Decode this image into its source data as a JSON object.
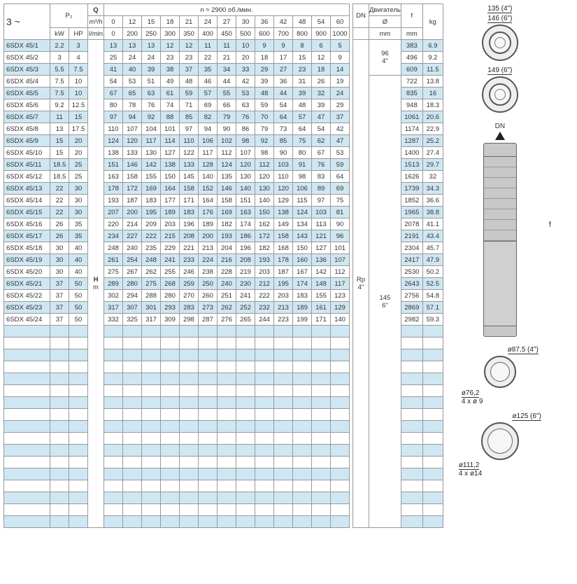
{
  "header": {
    "three_tilde": "3 ~",
    "P2": "P₂",
    "Q": "Q",
    "Q_unit1": "m³/h",
    "Q_unit2": "l/min",
    "kW": "kW",
    "HP": "HP",
    "rpm": "n ≈ 2900 об./мин.",
    "DN": "DN",
    "motor": "Двигатель",
    "diameter": "Ø",
    "mm": "mm",
    "f": "f",
    "kg": "kg",
    "H": "H",
    "m": "m",
    "Rp": "Rp",
    "Rp_size": "4\""
  },
  "flow_m3h": [
    "0",
    "12",
    "15",
    "18",
    "21",
    "24",
    "27",
    "30",
    "36",
    "42",
    "48",
    "54",
    "60"
  ],
  "flow_lmin": [
    "0",
    "200",
    "250",
    "300",
    "350",
    "400",
    "450",
    "500",
    "600",
    "700",
    "800",
    "900",
    "1000"
  ],
  "dn_groups": [
    {
      "dia": "96",
      "size": "4\"",
      "rows": 3
    },
    {
      "dia": "145",
      "size": "6\"",
      "rows": 21
    }
  ],
  "rows": [
    {
      "model": "6SDX 45/1",
      "kw": "2.2",
      "hp": "3",
      "h": [
        "13",
        "13",
        "13",
        "12",
        "12",
        "11",
        "11",
        "10",
        "9",
        "9",
        "8",
        "6",
        "5"
      ],
      "f": "383",
      "kg": "6.9"
    },
    {
      "model": "6SDX 45/2",
      "kw": "3",
      "hp": "4",
      "h": [
        "25",
        "24",
        "24",
        "23",
        "23",
        "22",
        "21",
        "20",
        "18",
        "17",
        "15",
        "12",
        "9"
      ],
      "f": "496",
      "kg": "9.2"
    },
    {
      "model": "6SDX 45/3",
      "kw": "5.5",
      "hp": "7.5",
      "h": [
        "41",
        "40",
        "39",
        "38",
        "37",
        "35",
        "34",
        "33",
        "29",
        "27",
        "23",
        "18",
        "14"
      ],
      "f": "609",
      "kg": "11.5"
    },
    {
      "model": "6SDX 45/4",
      "kw": "7.5",
      "hp": "10",
      "h": [
        "54",
        "53",
        "51",
        "49",
        "48",
        "46",
        "44",
        "42",
        "39",
        "36",
        "31",
        "26",
        "19"
      ],
      "f": "722",
      "kg": "13.8"
    },
    {
      "model": "6SDX 45/5",
      "kw": "7.5",
      "hp": "10",
      "h": [
        "67",
        "65",
        "63",
        "61",
        "59",
        "57",
        "55",
        "53",
        "48",
        "44",
        "39",
        "32",
        "24"
      ],
      "f": "835",
      "kg": "16"
    },
    {
      "model": "6SDX 45/6",
      "kw": "9.2",
      "hp": "12.5",
      "h": [
        "80",
        "78",
        "76",
        "74",
        "71",
        "69",
        "66",
        "63",
        "59",
        "54",
        "48",
        "39",
        "29"
      ],
      "f": "948",
      "kg": "18.3"
    },
    {
      "model": "6SDX 45/7",
      "kw": "11",
      "hp": "15",
      "h": [
        "97",
        "94",
        "92",
        "88",
        "85",
        "82",
        "79",
        "76",
        "70",
        "64",
        "57",
        "47",
        "37"
      ],
      "f": "1061",
      "kg": "20.6"
    },
    {
      "model": "6SDX 45/8",
      "kw": "13",
      "hp": "17.5",
      "h": [
        "110",
        "107",
        "104",
        "101",
        "97",
        "94",
        "90",
        "86",
        "79",
        "73",
        "64",
        "54",
        "42"
      ],
      "f": "1174",
      "kg": "22.9"
    },
    {
      "model": "6SDX 45/9",
      "kw": "15",
      "hp": "20",
      "h": [
        "124",
        "120",
        "117",
        "114",
        "110",
        "106",
        "102",
        "98",
        "92",
        "85",
        "75",
        "62",
        "47"
      ],
      "f": "1287",
      "kg": "25.2"
    },
    {
      "model": "6SDX 45/10",
      "kw": "15",
      "hp": "20",
      "h": [
        "138",
        "133",
        "130",
        "127",
        "122",
        "117",
        "112",
        "107",
        "98",
        "90",
        "80",
        "67",
        "53"
      ],
      "f": "1400",
      "kg": "27.4"
    },
    {
      "model": "6SDX 45/11",
      "kw": "18.5",
      "hp": "25",
      "h": [
        "151",
        "146",
        "142",
        "138",
        "133",
        "128",
        "124",
        "120",
        "112",
        "103",
        "91",
        "76",
        "59"
      ],
      "f": "1513",
      "kg": "29.7"
    },
    {
      "model": "6SDX 45/12",
      "kw": "18.5",
      "hp": "25",
      "h": [
        "163",
        "158",
        "155",
        "150",
        "145",
        "140",
        "135",
        "130",
        "120",
        "110",
        "98",
        "83",
        "64"
      ],
      "f": "1626",
      "kg": "32"
    },
    {
      "model": "6SDX 45/13",
      "kw": "22",
      "hp": "30",
      "h": [
        "178",
        "172",
        "169",
        "164",
        "158",
        "152",
        "146",
        "140",
        "130",
        "120",
        "106",
        "89",
        "69"
      ],
      "f": "1739",
      "kg": "34.3"
    },
    {
      "model": "6SDX 45/14",
      "kw": "22",
      "hp": "30",
      "h": [
        "193",
        "187",
        "183",
        "177",
        "171",
        "164",
        "158",
        "151",
        "140",
        "129",
        "115",
        "97",
        "75"
      ],
      "f": "1852",
      "kg": "36.6"
    },
    {
      "model": "6SDX 45/15",
      "kw": "22",
      "hp": "30",
      "h": [
        "207",
        "200",
        "195",
        "189",
        "183",
        "176",
        "169",
        "163",
        "150",
        "138",
        "124",
        "103",
        "81"
      ],
      "f": "1965",
      "kg": "38.8"
    },
    {
      "model": "6SDX 45/16",
      "kw": "26",
      "hp": "35",
      "h": [
        "220",
        "214",
        "209",
        "203",
        "196",
        "189",
        "182",
        "174",
        "162",
        "149",
        "134",
        "113",
        "90"
      ],
      "f": "2078",
      "kg": "41.1"
    },
    {
      "model": "6SDX 45/17",
      "kw": "26",
      "hp": "35",
      "h": [
        "234",
        "227",
        "222",
        "215",
        "208",
        "200",
        "193",
        "186",
        "172",
        "158",
        "143",
        "121",
        "96"
      ],
      "f": "2191",
      "kg": "43.4"
    },
    {
      "model": "6SDX 45/18",
      "kw": "30",
      "hp": "40",
      "h": [
        "248",
        "240",
        "235",
        "229",
        "221",
        "213",
        "204",
        "196",
        "182",
        "168",
        "150",
        "127",
        "101"
      ],
      "f": "2304",
      "kg": "45.7"
    },
    {
      "model": "6SDX 45/19",
      "kw": "30",
      "hp": "40",
      "h": [
        "261",
        "254",
        "248",
        "241",
        "233",
        "224",
        "216",
        "208",
        "193",
        "178",
        "160",
        "136",
        "107"
      ],
      "f": "2417",
      "kg": "47.9"
    },
    {
      "model": "6SDX 45/20",
      "kw": "30",
      "hp": "40",
      "h": [
        "275",
        "267",
        "262",
        "255",
        "246",
        "238",
        "228",
        "219",
        "203",
        "187",
        "167",
        "142",
        "112"
      ],
      "f": "2530",
      "kg": "50.2"
    },
    {
      "model": "6SDX 45/21",
      "kw": "37",
      "hp": "50",
      "h": [
        "289",
        "280",
        "275",
        "268",
        "259",
        "250",
        "240",
        "230",
        "212",
        "195",
        "174",
        "148",
        "117"
      ],
      "f": "2643",
      "kg": "52.5"
    },
    {
      "model": "6SDX 45/22",
      "kw": "37",
      "hp": "50",
      "h": [
        "302",
        "294",
        "288",
        "280",
        "270",
        "260",
        "251",
        "241",
        "222",
        "203",
        "183",
        "155",
        "123"
      ],
      "f": "2756",
      "kg": "54.8"
    },
    {
      "model": "6SDX 45/23",
      "kw": "37",
      "hp": "50",
      "h": [
        "317",
        "307",
        "301",
        "293",
        "283",
        "273",
        "262",
        "252",
        "232",
        "213",
        "189",
        "161",
        "129"
      ],
      "f": "2869",
      "kg": "57.1"
    },
    {
      "model": "6SDX 45/24",
      "kw": "37",
      "hp": "50",
      "h": [
        "332",
        "325",
        "317",
        "309",
        "298",
        "287",
        "276",
        "265",
        "244",
        "223",
        "199",
        "171",
        "140"
      ],
      "f": "2982",
      "kg": "59.3"
    }
  ],
  "blank_rows": 17,
  "colors": {
    "stripe": "#cfe7f2",
    "border": "#999999"
  },
  "diagram": {
    "d135": "135 (4\")",
    "d146": "146 (6\")",
    "d149": "149 (6\")",
    "dn": "DN",
    "f": "f",
    "d87": "ø87,5 (4\")",
    "d76": "ø76,2",
    "h4x9": "4 x ø 9",
    "d125": "ø125 (6\")",
    "d111": "ø111,2",
    "h4x14": "4 x ø14"
  }
}
